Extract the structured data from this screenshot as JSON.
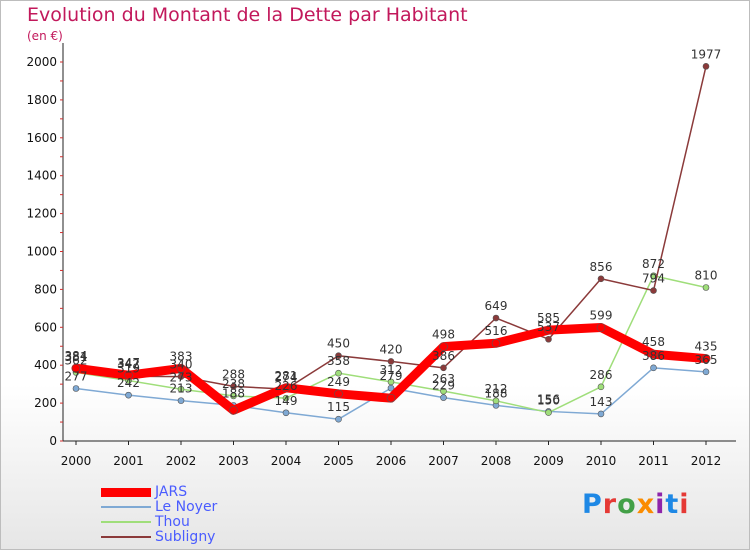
{
  "title": "Evolution du Montant de la Dette par Habitant",
  "subtitle": "(en €)",
  "brand": {
    "text": "Proxiti",
    "letter_colors": [
      "#1e88e5",
      "#e53935",
      "#43a047",
      "#fb8c00",
      "#8e24aa",
      "#1e88e5",
      "#e53935"
    ]
  },
  "chart_data": {
    "type": "line",
    "x": [
      "2000",
      "2001",
      "2002",
      "2003",
      "2004",
      "2005",
      "2006",
      "2007",
      "2008",
      "2009",
      "2010",
      "2011",
      "2012"
    ],
    "ylim": [
      0,
      2000
    ],
    "yticks": [
      0,
      200,
      400,
      600,
      800,
      1000,
      1200,
      1400,
      1600,
      1800,
      2000
    ],
    "grid": false,
    "legend_position": "bottom-left",
    "series": [
      {
        "name": "JARS",
        "color": "#ff0000",
        "width": 9,
        "marker": 4,
        "values": [
          384,
          347,
          383,
          162,
          281,
          249,
          226,
          498,
          516,
          585,
          599,
          458,
          435
        ],
        "labels": [
          "384",
          "347",
          "383",
          "",
          "281",
          "249",
          "",
          "498",
          "516",
          "585",
          "599",
          "458",
          "435"
        ]
      },
      {
        "name": "Le Noyer",
        "color": "#7fa9d4",
        "width": 1.5,
        "marker": 3,
        "values": [
          277,
          242,
          213,
          188,
          149,
          115,
          279,
          229,
          188,
          156,
          143,
          386,
          365
        ],
        "labels": [
          "277",
          "242",
          "213",
          "188",
          "149",
          "115",
          "279",
          "229",
          "188",
          "156",
          "143",
          "386",
          "365"
        ]
      },
      {
        "name": "Thou",
        "color": "#9fde7a",
        "width": 1.5,
        "marker": 3,
        "values": [
          362,
          319,
          273,
          238,
          226,
          358,
          312,
          263,
          212,
          150,
          286,
          872,
          810
        ],
        "labels": [
          "362",
          "319",
          "273",
          "238",
          "226",
          "358",
          "312",
          "263",
          "212",
          "150",
          "286",
          "872",
          "810"
        ]
      },
      {
        "name": "Subligny",
        "color": "#8b3a3a",
        "width": 1.5,
        "marker": 3,
        "values": [
          381,
          342,
          340,
          288,
          274,
          450,
          420,
          386,
          649,
          537,
          856,
          794,
          1977
        ],
        "labels": [
          "381",
          "342",
          "340",
          "288",
          "274",
          "450",
          "420",
          "386",
          "649",
          "537",
          "856",
          "794",
          "1977"
        ]
      }
    ]
  }
}
